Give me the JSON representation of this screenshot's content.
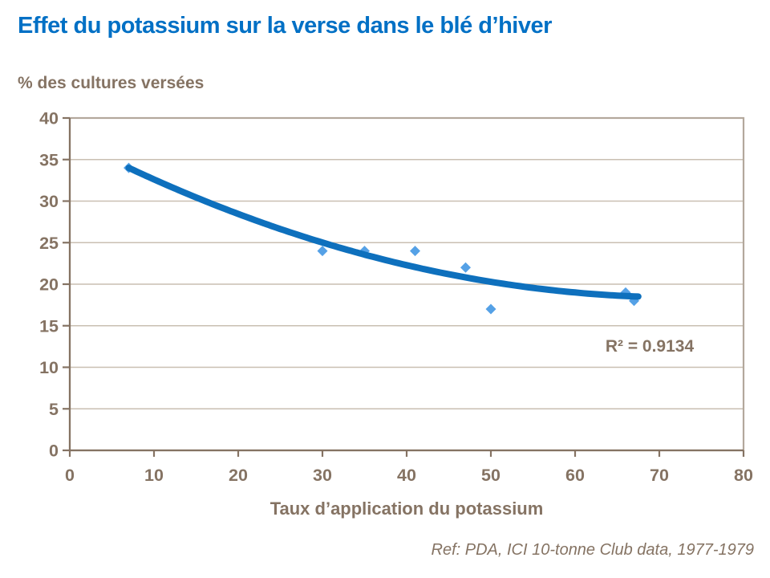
{
  "page": {
    "title": "Effet du potassium sur la verse dans le blé d’hiver",
    "footer": "Ref: PDA, ICI 10-tonne Club data, 1977-1979"
  },
  "colors": {
    "title": "#0070C5",
    "text": "#857363",
    "axis": "#857363",
    "grid": "#C9BFB2",
    "border": "#B3A89C",
    "marker": "#55A1E6",
    "trend": "#0E70BD"
  },
  "chart_data": {
    "type": "scatter",
    "title": "Effet du potassium sur la verse dans le blé d’hiver",
    "xlabel": "Taux d’application du potassium",
    "ylabel": "% des cultures versées",
    "xlim": [
      0,
      80
    ],
    "ylim": [
      0,
      40
    ],
    "x_ticks": [
      0,
      10,
      20,
      30,
      40,
      50,
      60,
      70,
      80
    ],
    "y_ticks": [
      0,
      5,
      10,
      15,
      20,
      25,
      30,
      35,
      40
    ],
    "grid": "horizontal",
    "legend_position": "none",
    "points": [
      [
        7,
        34
      ],
      [
        30,
        24
      ],
      [
        35,
        24
      ],
      [
        41,
        24
      ],
      [
        47,
        22
      ],
      [
        50,
        17
      ],
      [
        66,
        19
      ],
      [
        67,
        18
      ]
    ],
    "trendline": {
      "type": "polynomial",
      "degree": 2,
      "coefficients": {
        "a": 0.003594,
        "b": -0.5238,
        "c": 37.49
      },
      "x_start": 7,
      "x_end": 67.5
    },
    "annotation": "R² = 0.9134"
  }
}
